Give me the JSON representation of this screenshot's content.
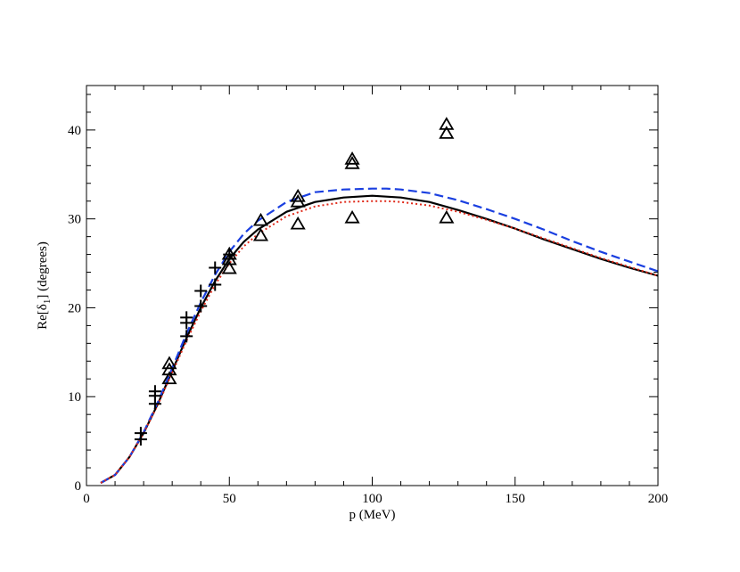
{
  "chart_data": {
    "type": "line",
    "title": "",
    "xlabel": "p (MeV)",
    "ylabel_main": "Re[δ",
    "ylabel_sub": "1",
    "ylabel_tail": "] (degrees)",
    "xlim": [
      0,
      200
    ],
    "ylim": [
      0,
      45
    ],
    "x_ticks": [
      0,
      50,
      100,
      150,
      200
    ],
    "y_ticks": [
      0,
      10,
      20,
      30,
      40
    ],
    "x_minor_step": 10,
    "y_minor_step": 2,
    "grid": false,
    "legend": "none",
    "series": [
      {
        "style": "solid",
        "color": "#000000",
        "x": [
          5,
          10,
          15,
          20,
          25,
          30,
          35,
          40,
          45,
          50,
          55,
          60,
          70,
          80,
          90,
          100,
          105,
          110,
          120,
          130,
          140,
          150,
          160,
          170,
          180,
          190,
          200
        ],
        "y": [
          0.3,
          1.2,
          3.2,
          5.9,
          9.2,
          12.9,
          16.6,
          20.0,
          23.0,
          25.5,
          27.4,
          28.8,
          30.8,
          31.9,
          32.4,
          32.6,
          32.5,
          32.4,
          31.9,
          31.0,
          30.0,
          28.9,
          27.7,
          26.6,
          25.5,
          24.5,
          23.6
        ]
      },
      {
        "style": "dashed",
        "color": "#1a3fe0",
        "x": [
          5,
          10,
          15,
          20,
          25,
          30,
          35,
          40,
          45,
          50,
          55,
          60,
          70,
          80,
          90,
          100,
          105,
          110,
          120,
          130,
          140,
          150,
          160,
          170,
          180,
          190,
          200
        ],
        "y": [
          0.3,
          1.2,
          3.2,
          6.0,
          9.4,
          13.2,
          17.1,
          20.6,
          23.7,
          26.3,
          28.3,
          29.8,
          31.9,
          33.0,
          33.3,
          33.4,
          33.4,
          33.3,
          32.9,
          32.1,
          31.1,
          30.0,
          28.8,
          27.5,
          26.3,
          25.2,
          24.1
        ]
      },
      {
        "style": "dotted",
        "color": "#e02a1a",
        "x": [
          5,
          10,
          15,
          20,
          25,
          30,
          35,
          40,
          45,
          50,
          55,
          60,
          70,
          80,
          90,
          100,
          105,
          110,
          120,
          130,
          140,
          150,
          160,
          170,
          180,
          190,
          200
        ],
        "y": [
          0.3,
          1.2,
          3.2,
          5.9,
          9.1,
          12.7,
          16.3,
          19.6,
          22.6,
          25.0,
          26.9,
          28.3,
          30.3,
          31.4,
          31.9,
          32.0,
          32.0,
          31.9,
          31.5,
          30.8,
          29.9,
          28.9,
          27.8,
          26.7,
          25.6,
          24.6,
          23.6
        ]
      }
    ],
    "plus_points": {
      "x": [
        19,
        19,
        24,
        24,
        24,
        35,
        35,
        35,
        40,
        40,
        45,
        45,
        50
      ],
      "y": [
        5.2,
        5.9,
        9.2,
        10.1,
        10.6,
        16.8,
        18.3,
        18.9,
        20.2,
        21.9,
        22.6,
        24.5,
        26.0
      ]
    },
    "triangle_points": {
      "x": [
        29,
        29,
        29,
        50,
        50,
        50,
        61,
        61,
        74,
        74,
        74,
        93,
        93,
        93,
        126,
        126,
        126
      ],
      "y": [
        12.0,
        13.0,
        13.7,
        24.4,
        25.4,
        26.0,
        28.1,
        29.8,
        29.4,
        31.9,
        32.5,
        30.1,
        36.2,
        36.7,
        30.1,
        39.6,
        40.6
      ]
    }
  }
}
